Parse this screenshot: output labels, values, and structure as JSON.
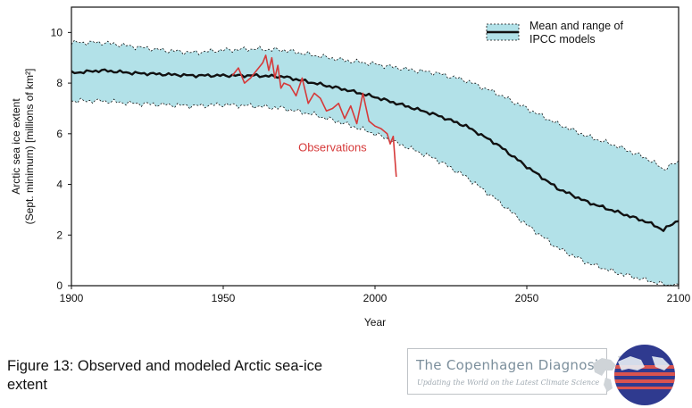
{
  "chart_data": {
    "type": "line",
    "x_label": "Year",
    "y_label_line1": "Arctic sea ice extent",
    "y_label_line2": "(Sept. minimum) [millions of km²]",
    "xlim": [
      1900,
      2100
    ],
    "ylim": [
      0,
      11
    ],
    "x_ticks": [
      1900,
      1950,
      2000,
      2050,
      2100
    ],
    "y_ticks": [
      0,
      2,
      4,
      6,
      8,
      10
    ],
    "legend": {
      "placement": "top-right",
      "text_line1": "Mean and range of",
      "text_line2": "IPCC models"
    },
    "annotations": [
      {
        "text": "Observations",
        "x": 1986,
        "y": 5.3,
        "color": "#d63a3a"
      }
    ],
    "series": [
      {
        "name": "Mean and range of IPCC models",
        "kind": "band-with-mean",
        "color": "#111111",
        "fill": "#b2e1e8",
        "x": [
          1900,
          1910,
          1920,
          1930,
          1940,
          1950,
          1960,
          1970,
          1980,
          1990,
          2000,
          2010,
          2020,
          2030,
          2040,
          2050,
          2060,
          2070,
          2080,
          2090,
          2095,
          2100
        ],
        "mean": [
          8.4,
          8.5,
          8.4,
          8.35,
          8.3,
          8.3,
          8.3,
          8.25,
          8.0,
          7.75,
          7.45,
          7.1,
          6.75,
          6.3,
          5.6,
          4.7,
          3.85,
          3.3,
          2.9,
          2.5,
          2.2,
          2.6
        ],
        "upper": [
          9.6,
          9.6,
          9.45,
          9.3,
          9.2,
          9.3,
          9.35,
          9.3,
          9.1,
          8.9,
          8.75,
          8.55,
          8.4,
          8.1,
          7.6,
          7.0,
          6.4,
          5.9,
          5.5,
          5.0,
          4.6,
          4.9
        ],
        "lower": [
          7.3,
          7.3,
          7.2,
          7.15,
          7.1,
          7.15,
          7.1,
          7.0,
          6.75,
          6.4,
          6.0,
          5.5,
          5.0,
          4.3,
          3.4,
          2.4,
          1.5,
          0.9,
          0.5,
          0.2,
          0.05,
          0.0
        ]
      },
      {
        "name": "Observations",
        "kind": "line",
        "color": "#d63a3a",
        "x": [
          1953,
          1955,
          1957,
          1959,
          1961,
          1963,
          1964,
          1965,
          1966,
          1967,
          1968,
          1969,
          1970,
          1972,
          1974,
          1976,
          1978,
          1980,
          1982,
          1984,
          1986,
          1988,
          1990,
          1992,
          1994,
          1996,
          1998,
          2000,
          2002,
          2004,
          2005,
          2006,
          2007
        ],
        "y": [
          8.3,
          8.6,
          8.0,
          8.2,
          8.5,
          8.8,
          9.1,
          8.5,
          9.0,
          8.2,
          8.7,
          7.8,
          8.0,
          7.9,
          7.5,
          8.2,
          7.2,
          7.6,
          7.4,
          6.9,
          7.0,
          7.2,
          6.6,
          7.1,
          6.4,
          7.6,
          6.5,
          6.3,
          6.2,
          6.0,
          5.6,
          5.9,
          4.3
        ]
      }
    ]
  },
  "caption": {
    "line1": "Figure 13: Observed and modeled Arctic sea-ice",
    "line2": "extent"
  },
  "logo": {
    "title": "The Copenhagen Diagnosis",
    "subtitle": "Updating the World on the Latest Climate Science"
  }
}
